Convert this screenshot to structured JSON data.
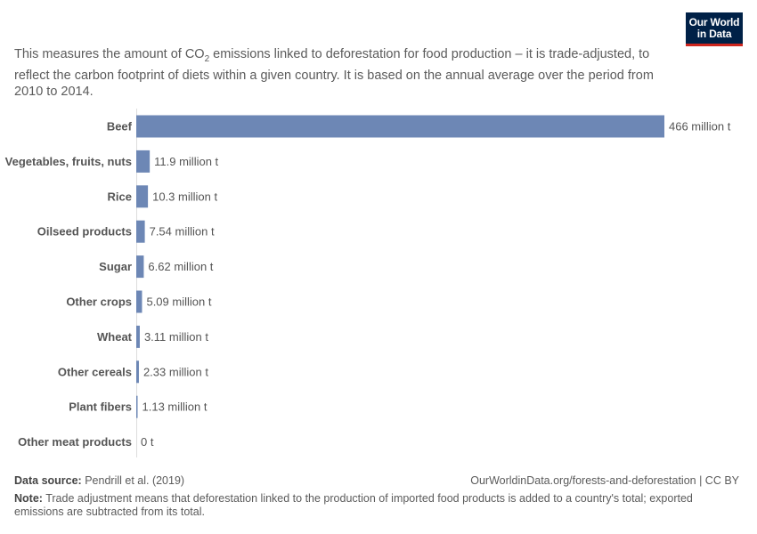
{
  "logo": {
    "line1": "Our World",
    "line2": "in Data"
  },
  "subtitle": {
    "before": "This measures the amount of CO",
    "sub": "2",
    "after": " emissions linked to deforestation for food production – it is trade-adjusted, to reflect the carbon footprint of diets within a given country. It is based on the annual average over the period from 2010 to 2014."
  },
  "chart_data": {
    "type": "bar",
    "orientation": "horizontal",
    "categories": [
      "Beef",
      "Vegetables, fruits, nuts",
      "Rice",
      "Oilseed products",
      "Sugar",
      "Other crops",
      "Wheat",
      "Other cereals",
      "Plant fibers",
      "Other meat products"
    ],
    "values": [
      466,
      11.9,
      10.3,
      7.54,
      6.62,
      5.09,
      3.11,
      2.33,
      1.13,
      0
    ],
    "value_labels": [
      "466 million t",
      "11.9 million t",
      "10.3 million t",
      "7.54 million t",
      "6.62 million t",
      "5.09 million t",
      "3.11 million t",
      "2.33 million t",
      "1.13 million t",
      "0 t"
    ],
    "unit": "million t",
    "bar_color": "#6d87b5",
    "grid": false
  },
  "footer": {
    "source_label": "Data source:",
    "source_text": " Pendrill et al. (2019)",
    "credit": "OurWorldinData.org/forests-and-deforestation | CC BY",
    "note_label": "Note:",
    "note_text": " Trade adjustment means that deforestation linked to the production of imported food products is added to a country's total; exported emissions are subtracted from its total."
  }
}
